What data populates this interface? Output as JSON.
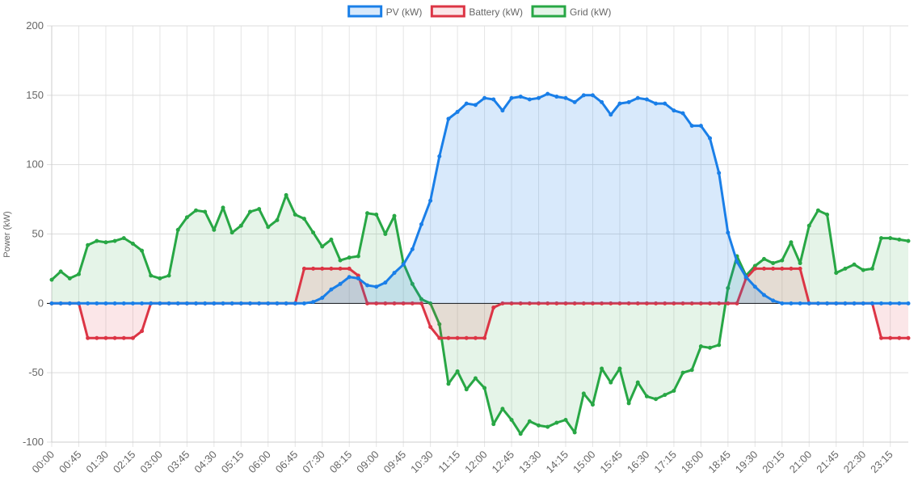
{
  "chart_data": {
    "type": "line",
    "y_label": "Power (kW)",
    "categories": [
      "00:00",
      null,
      null,
      "00:45",
      null,
      null,
      "01:30",
      null,
      null,
      "02:15",
      null,
      null,
      "03:00",
      null,
      null,
      "03:45",
      null,
      null,
      "04:30",
      null,
      null,
      "05:15",
      null,
      null,
      "06:00",
      null,
      null,
      "06:45",
      null,
      null,
      "07:30",
      null,
      null,
      "08:15",
      null,
      null,
      "09:00",
      null,
      null,
      "09:45",
      null,
      null,
      "10:30",
      null,
      null,
      "11:15",
      null,
      null,
      "12:00",
      null,
      null,
      "12:45",
      null,
      null,
      "13:30",
      null,
      null,
      "14:15",
      null,
      null,
      "15:00",
      null,
      null,
      "15:45",
      null,
      null,
      "16:30",
      null,
      null,
      "17:15",
      null,
      null,
      "18:00",
      null,
      null,
      "18:45",
      null,
      null,
      "19:30",
      null,
      null,
      "20:15",
      null,
      null,
      "21:00",
      null,
      null,
      "21:45",
      null,
      null,
      "22:30",
      null,
      null,
      "23:15",
      null,
      null
    ],
    "series": [
      {
        "name": "PV (kW)",
        "color": "#1a7fe8",
        "fill": "rgba(26,127,232,0.17)",
        "values": [
          0,
          0,
          0,
          0,
          0,
          0,
          0,
          0,
          0,
          0,
          0,
          0,
          0,
          0,
          0,
          0,
          0,
          0,
          0,
          0,
          0,
          0,
          0,
          0,
          0,
          0,
          0,
          0,
          0,
          1,
          4,
          10,
          14,
          19,
          18,
          13,
          12,
          15,
          22,
          28,
          39,
          57,
          74,
          106,
          133,
          138,
          144,
          143,
          148,
          147,
          139,
          148,
          149,
          147,
          148,
          151,
          149,
          148,
          145,
          150,
          150,
          145,
          136,
          144,
          145,
          148,
          147,
          144,
          144,
          139,
          137,
          128,
          128,
          119,
          94,
          51,
          30,
          19,
          12,
          6,
          2,
          0,
          0,
          0,
          0,
          0,
          0,
          0,
          0,
          0,
          0,
          0,
          0,
          0,
          0,
          0
        ]
      },
      {
        "name": "Battery (kW)",
        "color": "#dc3545",
        "fill": "rgba(220,53,69,0.12)",
        "values": [
          0,
          0,
          0,
          0,
          -25,
          -25,
          -25,
          -25,
          -25,
          -25,
          -20,
          0,
          0,
          0,
          0,
          0,
          0,
          0,
          0,
          0,
          0,
          0,
          0,
          0,
          0,
          0,
          0,
          0,
          25,
          25,
          25,
          25,
          25,
          25,
          20,
          0,
          0,
          0,
          0,
          0,
          0,
          0,
          -17,
          -25,
          -25,
          -25,
          -25,
          -25,
          -25,
          -3,
          0,
          0,
          0,
          0,
          0,
          0,
          0,
          0,
          0,
          0,
          0,
          0,
          0,
          0,
          0,
          0,
          0,
          0,
          0,
          0,
          0,
          0,
          0,
          0,
          0,
          0,
          0,
          18,
          25,
          25,
          25,
          25,
          25,
          25,
          0,
          0,
          0,
          0,
          0,
          0,
          0,
          0,
          -25,
          -25,
          -25,
          -25
        ]
      },
      {
        "name": "Grid (kW)",
        "color": "#28a745",
        "fill": "rgba(40,167,69,0.12)",
        "values": [
          17,
          23,
          18,
          21,
          42,
          45,
          44,
          45,
          47,
          43,
          38,
          20,
          18,
          20,
          53,
          62,
          67,
          66,
          53,
          69,
          51,
          56,
          66,
          68,
          55,
          60,
          78,
          64,
          61,
          51,
          41,
          46,
          31,
          33,
          34,
          65,
          64,
          50,
          63,
          29,
          14,
          3,
          0,
          -15,
          -58,
          -49,
          -62,
          -54,
          -61,
          -87,
          -76,
          -84,
          -94,
          -85,
          -88,
          -89,
          -86,
          -84,
          -93,
          -65,
          -73,
          -47,
          -57,
          -47,
          -72,
          -57,
          -67,
          -69,
          -66,
          -63,
          -50,
          -48,
          -31,
          -32,
          -30,
          11,
          34,
          20,
          27,
          32,
          29,
          31,
          44,
          29,
          56,
          67,
          64,
          22,
          25,
          28,
          24,
          25,
          47,
          47,
          46,
          45
        ]
      }
    ],
    "ylim": [
      -100,
      200
    ],
    "yticks": [
      -100,
      -50,
      0,
      50,
      100,
      150,
      200
    ],
    "grid": true,
    "legend": "top"
  }
}
